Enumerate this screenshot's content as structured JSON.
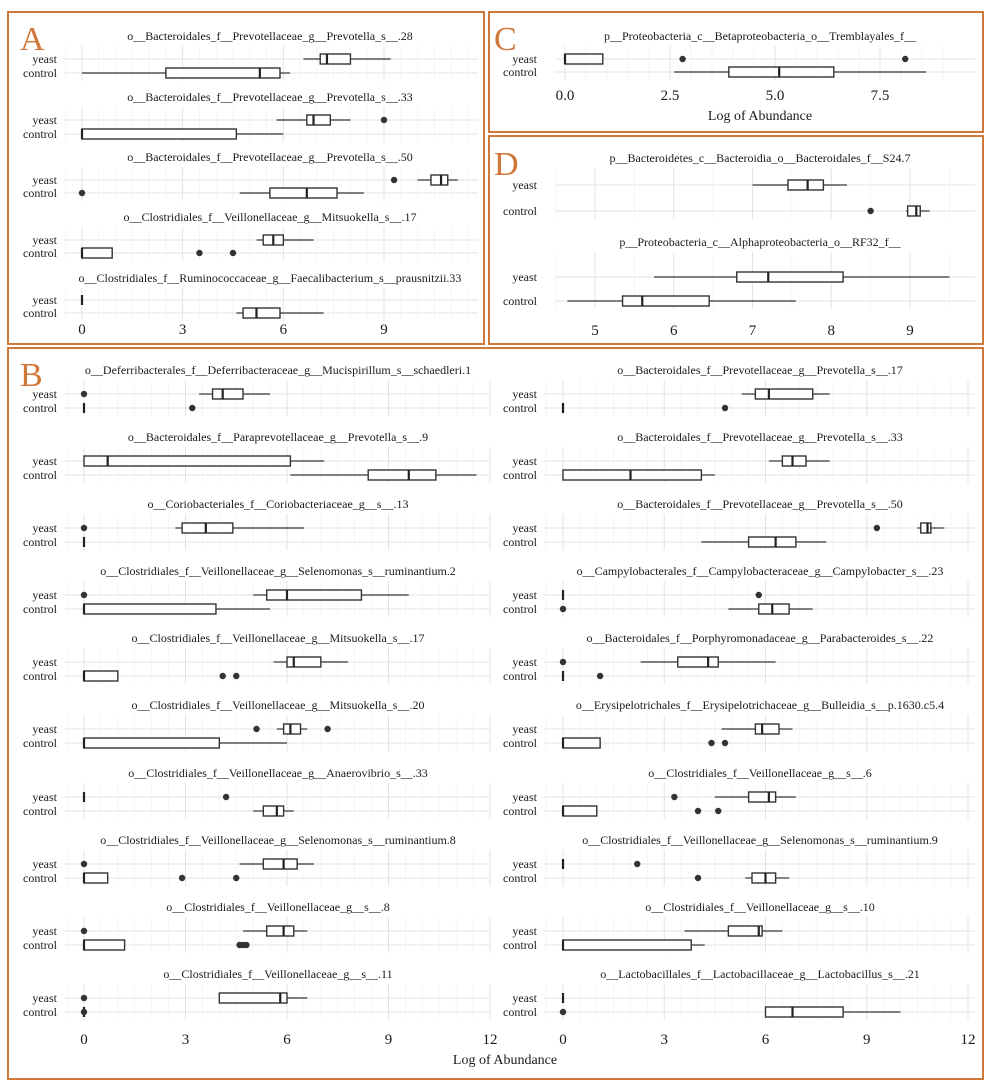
{
  "figure": {
    "accent": "#d0783a",
    "panel_labels": [
      "A",
      "B",
      "C",
      "D"
    ]
  },
  "chart_data": [
    {
      "type": "boxplot",
      "panel": "A",
      "xlim": [
        -0.6,
        12
      ],
      "ticks": [
        0,
        3,
        6,
        9
      ],
      "xlabel": "",
      "plots": [
        {
          "title": "o__Bacteroidales_f__Prevotellaceae_g__Prevotella_s__.28",
          "yeast": {
            "q1": 7.1,
            "median": 7.3,
            "q3": 8.0,
            "wlo": 6.6,
            "whi": 9.2,
            "outliers": []
          },
          "control": {
            "q1": 2.5,
            "median": 5.3,
            "q3": 5.9,
            "wlo": 0.0,
            "whi": 6.2,
            "outliers": []
          }
        },
        {
          "title": "o__Bacteroidales_f__Prevotellaceae_g__Prevotella_s__.33",
          "yeast": {
            "q1": 6.7,
            "median": 6.9,
            "q3": 7.4,
            "wlo": 5.8,
            "whi": 8.0,
            "outliers": [
              9.0
            ]
          },
          "control": {
            "q1": 0.0,
            "median": 0.0,
            "q3": 4.6,
            "wlo": 0.0,
            "whi": 6.0,
            "outliers": []
          }
        },
        {
          "title": "o__Bacteroidales_f__Prevotellaceae_g__Prevotella_s__.50",
          "yeast": {
            "q1": 10.4,
            "median": 10.7,
            "q3": 10.9,
            "wlo": 10.0,
            "whi": 11.2,
            "outliers": [
              9.3
            ]
          },
          "control": {
            "q1": 5.6,
            "median": 6.7,
            "q3": 7.6,
            "wlo": 4.7,
            "whi": 8.4,
            "outliers": [
              0.0
            ]
          }
        },
        {
          "title": "o__Clostridiales_f__Veillonellaceae_g__Mitsuokella_s__.17",
          "yeast": {
            "q1": 5.4,
            "median": 5.7,
            "q3": 6.0,
            "wlo": 5.2,
            "whi": 6.9,
            "outliers": []
          },
          "control": {
            "q1": 0.0,
            "median": 0.0,
            "q3": 0.9,
            "wlo": 0.0,
            "whi": 0.9,
            "outliers": [
              3.5,
              4.5
            ]
          }
        },
        {
          "title": "o__Clostridiales_f__Ruminococcaceae_g__Faecalibacterium_s__prausnitzii.33",
          "yeast": {
            "q1": 0.0,
            "median": 0.0,
            "q3": 0.0,
            "wlo": 0.0,
            "whi": 0.0,
            "outliers": []
          },
          "control": {
            "q1": 4.8,
            "median": 5.2,
            "q3": 5.9,
            "wlo": 4.6,
            "whi": 7.2,
            "outliers": []
          }
        }
      ]
    },
    {
      "type": "boxplot",
      "panel": "C",
      "xlim": [
        -0.6,
        9.3
      ],
      "ticks": [
        "0.0",
        "2.5",
        "5.0",
        "7.5"
      ],
      "tick_values": [
        0,
        2.5,
        5,
        7.5
      ],
      "xlabel": "Log of Abundance",
      "plots": [
        {
          "title": "p__Proteobacteria_c__Betaproteobacteria_o__Tremblayales_f__",
          "yeast": {
            "q1": 0.0,
            "median": 0.0,
            "q3": 0.9,
            "wlo": 0.0,
            "whi": 0.9,
            "outliers": [
              2.8,
              8.1
            ]
          },
          "control": {
            "q1": 3.9,
            "median": 5.1,
            "q3": 6.4,
            "wlo": 2.6,
            "whi": 8.6,
            "outliers": []
          }
        }
      ]
    },
    {
      "type": "boxplot",
      "panel": "D",
      "xlim": [
        4.45,
        9.75
      ],
      "ticks": [
        5,
        6,
        7,
        8,
        9
      ],
      "xlabel": "",
      "plots": [
        {
          "title": "p__Bacteroidetes_c__Bacteroidia_o__Bacteroidales_f__S24.7",
          "yeast": {
            "q1": 7.45,
            "median": 7.7,
            "q3": 7.9,
            "wlo": 7.0,
            "whi": 8.2,
            "outliers": []
          },
          "control": {
            "q1": 8.97,
            "median": 9.08,
            "q3": 9.13,
            "wlo": 8.95,
            "whi": 9.25,
            "outliers": [
              8.5
            ]
          }
        },
        {
          "title": "p__Proteobacteria_c__Alphaproteobacteria_o__RF32_f__",
          "yeast": {
            "q1": 6.8,
            "median": 7.2,
            "q3": 8.15,
            "wlo": 5.75,
            "whi": 9.5,
            "outliers": []
          },
          "control": {
            "q1": 5.35,
            "median": 5.6,
            "q3": 6.45,
            "wlo": 4.65,
            "whi": 7.55,
            "outliers": []
          }
        }
      ]
    },
    {
      "type": "boxplot",
      "panel": "B-left",
      "xlim": [
        -0.6,
        12.2
      ],
      "ticks": [
        0,
        3,
        6,
        9,
        12
      ],
      "xlabel": "Log of Abundance",
      "plots": [
        {
          "title": "o__Deferribacterales_f__Deferribacteraceae_g__Mucispirillum_s__schaedleri.1",
          "yeast": {
            "q1": 3.8,
            "median": 4.1,
            "q3": 4.7,
            "wlo": 3.4,
            "whi": 5.5,
            "outliers": [
              0.0
            ]
          },
          "control": {
            "q1": 0.0,
            "median": 0.0,
            "q3": 0.0,
            "wlo": 0.0,
            "whi": 0.0,
            "outliers": [
              3.2
            ]
          }
        },
        {
          "title": "o__Bacteroidales_f__Paraprevotellaceae_g__Prevotella_s__.9",
          "yeast": {
            "q1": 0.0,
            "median": 0.7,
            "q3": 6.1,
            "wlo": 0.0,
            "whi": 7.1,
            "outliers": []
          },
          "control": {
            "q1": 8.4,
            "median": 9.6,
            "q3": 10.4,
            "wlo": 6.1,
            "whi": 11.6,
            "outliers": []
          }
        },
        {
          "title": "o__Coriobacteriales_f__Coriobacteriaceae_g__s__.13",
          "yeast": {
            "q1": 2.9,
            "median": 3.6,
            "q3": 4.4,
            "wlo": 2.7,
            "whi": 6.5,
            "outliers": [
              0.0
            ]
          },
          "control": {
            "q1": 0.0,
            "median": 0.0,
            "q3": 0.0,
            "wlo": 0.0,
            "whi": 0.0,
            "outliers": []
          }
        },
        {
          "title": "o__Clostridiales_f__Veillonellaceae_g__Selenomonas_s__ruminantium.2",
          "yeast": {
            "q1": 5.4,
            "median": 6.0,
            "q3": 8.2,
            "wlo": 5.0,
            "whi": 9.6,
            "outliers": [
              0.0
            ]
          },
          "control": {
            "q1": 0.0,
            "median": 0.0,
            "q3": 3.9,
            "wlo": 0.0,
            "whi": 5.5,
            "outliers": []
          }
        },
        {
          "title": "o__Clostridiales_f__Veillonellaceae_g__Mitsuokella_s__.17",
          "yeast": {
            "q1": 6.0,
            "median": 6.2,
            "q3": 7.0,
            "wlo": 5.6,
            "whi": 7.8,
            "outliers": []
          },
          "control": {
            "q1": 0.0,
            "median": 0.0,
            "q3": 1.0,
            "wlo": 0.0,
            "whi": 1.0,
            "outliers": [
              4.1,
              4.5
            ]
          }
        },
        {
          "title": "o__Clostridiales_f__Veillonellaceae_g__Mitsuokella_s__.20",
          "yeast": {
            "q1": 5.9,
            "median": 6.1,
            "q3": 6.4,
            "wlo": 5.7,
            "whi": 6.6,
            "outliers": [
              5.1,
              7.2
            ]
          },
          "control": {
            "q1": 0.0,
            "median": 0.0,
            "q3": 4.0,
            "wlo": 0.0,
            "whi": 6.0,
            "outliers": []
          }
        },
        {
          "title": "o__Clostridiales_f__Veillonellaceae_g__Anaerovibrio_s__.33",
          "yeast": {
            "q1": 0.0,
            "median": 0.0,
            "q3": 0.0,
            "wlo": 0.0,
            "whi": 0.0,
            "outliers": [
              4.2
            ]
          },
          "control": {
            "q1": 5.3,
            "median": 5.7,
            "q3": 5.9,
            "wlo": 5.0,
            "whi": 6.2,
            "outliers": []
          }
        },
        {
          "title": "o__Clostridiales_f__Veillonellaceae_g__Selenomonas_s__ruminantium.8",
          "yeast": {
            "q1": 5.3,
            "median": 5.9,
            "q3": 6.3,
            "wlo": 4.6,
            "whi": 6.8,
            "outliers": [
              0.0
            ]
          },
          "control": {
            "q1": 0.0,
            "median": 0.0,
            "q3": 0.7,
            "wlo": 0.0,
            "whi": 0.7,
            "outliers": [
              2.9,
              4.5
            ]
          }
        },
        {
          "title": "o__Clostridiales_f__Veillonellaceae_g__s__.8",
          "yeast": {
            "q1": 5.4,
            "median": 5.9,
            "q3": 6.2,
            "wlo": 4.7,
            "whi": 6.6,
            "outliers": [
              0.0
            ]
          },
          "control": {
            "q1": 0.0,
            "median": 0.0,
            "q3": 1.2,
            "wlo": 0.0,
            "whi": 1.2,
            "outliers": [
              4.6,
              4.7,
              4.8
            ]
          }
        },
        {
          "title": "o__Clostridiales_f__Veillonellaceae_g__s__.11",
          "yeast": {
            "q1": 4.0,
            "median": 5.8,
            "q3": 6.0,
            "wlo": 4.0,
            "whi": 6.6,
            "outliers": [
              0.0
            ]
          },
          "control": {
            "q1": 0.0,
            "median": 0.0,
            "q3": 0.0,
            "wlo": 0.0,
            "whi": 0.0,
            "outliers": [
              0.0
            ]
          }
        }
      ]
    },
    {
      "type": "boxplot",
      "panel": "B-right",
      "xlim": [
        -0.6,
        12.2
      ],
      "ticks": [
        0,
        3,
        6,
        9,
        12
      ],
      "xlabel": "",
      "plots": [
        {
          "title": "o__Bacteroidales_f__Prevotellaceae_g__Prevotella_s__.17",
          "yeast": {
            "q1": 5.7,
            "median": 6.1,
            "q3": 7.4,
            "wlo": 5.3,
            "whi": 7.9,
            "outliers": []
          },
          "control": {
            "q1": 0.0,
            "median": 0.0,
            "q3": 0.0,
            "wlo": 0.0,
            "whi": 0.0,
            "outliers": [
              4.8
            ]
          }
        },
        {
          "title": "o__Bacteroidales_f__Prevotellaceae_g__Prevotella_s__.33",
          "yeast": {
            "q1": 6.5,
            "median": 6.8,
            "q3": 7.2,
            "wlo": 6.1,
            "whi": 7.9,
            "outliers": []
          },
          "control": {
            "q1": 0.0,
            "median": 2.0,
            "q3": 4.1,
            "wlo": 0.0,
            "whi": 4.5,
            "outliers": []
          }
        },
        {
          "title": "o__Bacteroidales_f__Prevotellaceae_g__Prevotella_s__.50",
          "yeast": {
            "q1": 10.6,
            "median": 10.8,
            "q3": 10.9,
            "wlo": 10.5,
            "whi": 11.3,
            "outliers": [
              9.3
            ]
          },
          "control": {
            "q1": 5.5,
            "median": 6.3,
            "q3": 6.9,
            "wlo": 4.1,
            "whi": 7.8,
            "outliers": []
          }
        },
        {
          "title": "o__Campylobacterales_f__Campylobacteraceae_g__Campylobacter_s__.23",
          "yeast": {
            "q1": 0.0,
            "median": 0.0,
            "q3": 0.0,
            "wlo": 0.0,
            "whi": 0.0,
            "outliers": [
              5.8
            ]
          },
          "control": {
            "q1": 5.8,
            "median": 6.2,
            "q3": 6.7,
            "wlo": 4.9,
            "whi": 7.4,
            "outliers": [
              0.0
            ]
          }
        },
        {
          "title": "o__Bacteroidales_f__Porphyromonadaceae_g__Parabacteroides_s__.22",
          "yeast": {
            "q1": 3.4,
            "median": 4.3,
            "q3": 4.6,
            "wlo": 2.3,
            "whi": 6.3,
            "outliers": [
              0.0
            ]
          },
          "control": {
            "q1": 0.0,
            "median": 0.0,
            "q3": 0.0,
            "wlo": 0.0,
            "whi": 0.0,
            "outliers": [
              1.1
            ]
          }
        },
        {
          "title": "o__Erysipelotrichales_f__Erysipelotrichaceae_g__Bulleidia_s__p.1630.c5.4",
          "yeast": {
            "q1": 5.7,
            "median": 5.9,
            "q3": 6.4,
            "wlo": 4.7,
            "whi": 6.8,
            "outliers": []
          },
          "control": {
            "q1": 0.0,
            "median": 0.0,
            "q3": 1.1,
            "wlo": 0.0,
            "whi": 1.1,
            "outliers": [
              4.4,
              4.8
            ]
          }
        },
        {
          "title": "o__Clostridiales_f__Veillonellaceae_g__s__.6",
          "yeast": {
            "q1": 5.5,
            "median": 6.1,
            "q3": 6.3,
            "wlo": 4.5,
            "whi": 6.9,
            "outliers": [
              3.3
            ]
          },
          "control": {
            "q1": 0.0,
            "median": 0.0,
            "q3": 1.0,
            "wlo": 0.0,
            "whi": 1.0,
            "outliers": [
              4.0,
              4.6
            ]
          }
        },
        {
          "title": "o__Clostridiales_f__Veillonellaceae_g__Selenomonas_s__ruminantium.9",
          "yeast": {
            "q1": 0.0,
            "median": 0.0,
            "q3": 0.0,
            "wlo": 0.0,
            "whi": 0.0,
            "outliers": [
              2.2
            ]
          },
          "control": {
            "q1": 5.6,
            "median": 6.0,
            "q3": 6.3,
            "wlo": 5.4,
            "whi": 6.7,
            "outliers": [
              4.0
            ]
          }
        },
        {
          "title": "o__Clostridiales_f__Veillonellaceae_g__s__.10",
          "yeast": {
            "q1": 4.9,
            "median": 5.8,
            "q3": 5.9,
            "wlo": 3.6,
            "whi": 6.5,
            "outliers": []
          },
          "control": {
            "q1": 0.0,
            "median": 0.0,
            "q3": 3.8,
            "wlo": 0.0,
            "whi": 4.2,
            "outliers": []
          }
        },
        {
          "title": "o__Lactobacillales_f__Lactobacillaceae_g__Lactobacillus_s__.21",
          "yeast": {
            "q1": 0.0,
            "median": 0.0,
            "q3": 0.0,
            "wlo": 0.0,
            "whi": 0.0,
            "outliers": []
          },
          "control": {
            "q1": 6.0,
            "median": 6.8,
            "q3": 8.3,
            "wlo": 6.0,
            "whi": 10.0,
            "outliers": [
              0.0
            ]
          }
        }
      ]
    }
  ],
  "group_labels": {
    "yeast": "yeast",
    "control": "control"
  }
}
